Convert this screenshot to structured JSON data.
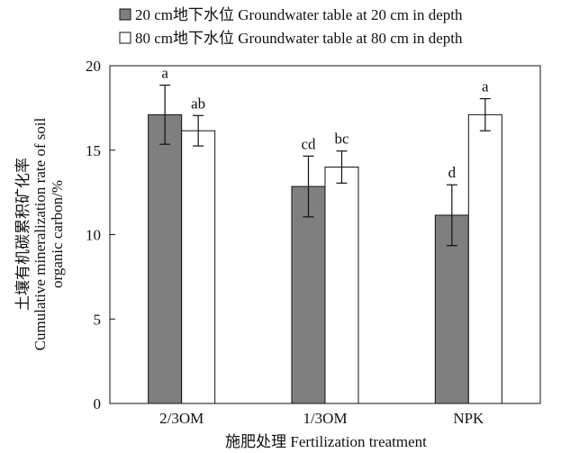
{
  "chart_data": {
    "type": "bar",
    "categories": [
      "2/3OM",
      "1/3OM",
      "NPK"
    ],
    "series": [
      {
        "name": "20 cm地下水位  Groundwater table at 20 cm in depth",
        "color": "#7f7f7f",
        "values": [
          17.1,
          12.85,
          11.15
        ],
        "errors": [
          1.75,
          1.8,
          1.8
        ],
        "labels": [
          "a",
          "cd",
          "d"
        ]
      },
      {
        "name": "80 cm地下水位  Groundwater table at 80 cm in depth",
        "color": "#ffffff",
        "values": [
          16.15,
          14.0,
          17.1
        ],
        "errors": [
          0.9,
          0.95,
          0.95
        ],
        "labels": [
          "ab",
          "bc",
          "a"
        ]
      }
    ],
    "xlabel": "施肥处理 Fertilization treatment",
    "ylabel_lines": [
      "土壤有机碳累积矿化率",
      "Cumulative mineralization rate of soil",
      "organic carbon/%"
    ],
    "ylim": [
      0,
      20
    ],
    "yticks": [
      0,
      5,
      10,
      15,
      20
    ],
    "legend_position": "top",
    "grid": false
  }
}
